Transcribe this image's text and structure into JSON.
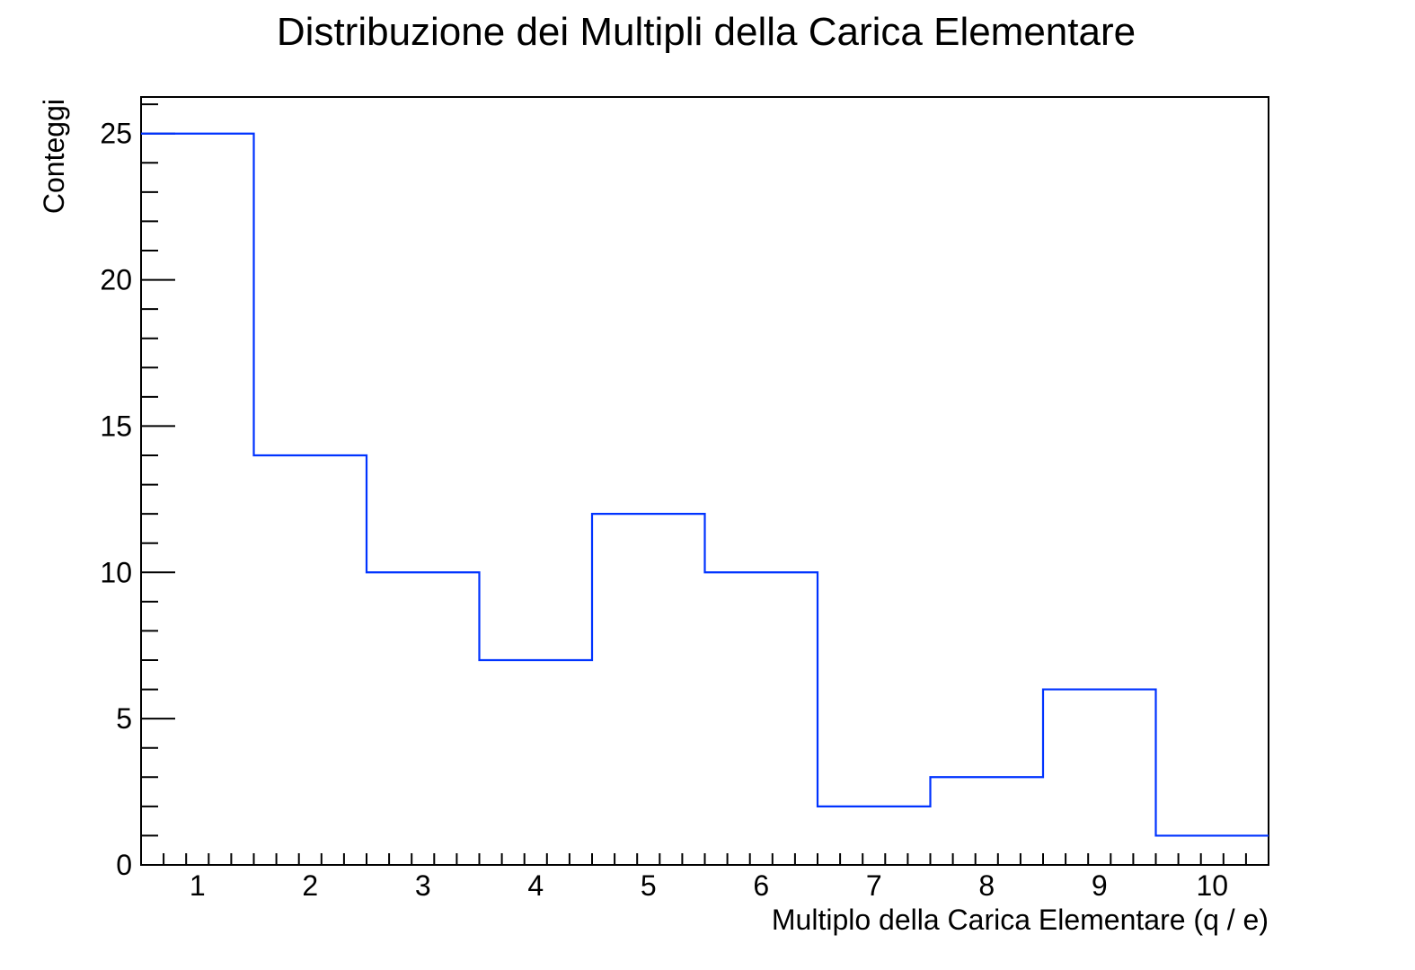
{
  "chart_data": {
    "type": "histogram",
    "title": "Distribuzione dei Multipli della Carica Elementare",
    "xlabel": "Multiplo della Carica Elementare (q / e)",
    "ylabel": "Conteggi",
    "bin_edges": [
      0.5,
      1.5,
      2.5,
      3.5,
      4.5,
      5.5,
      6.5,
      7.5,
      8.5,
      9.5,
      10.5
    ],
    "categories": [
      "1",
      "2",
      "3",
      "4",
      "5",
      "6",
      "7",
      "8",
      "9",
      "10"
    ],
    "values": [
      25,
      14,
      10,
      7,
      12,
      10,
      2,
      3,
      6,
      1
    ],
    "xlim": [
      0.5,
      10.5
    ],
    "ylim": [
      0,
      26.25
    ],
    "x_ticks": [
      1,
      2,
      3,
      4,
      5,
      6,
      7,
      8,
      9,
      10
    ],
    "x_tick_labels": [
      "1",
      "2",
      "3",
      "4",
      "5",
      "6",
      "7",
      "8",
      "9",
      "10"
    ],
    "y_ticks": [
      0,
      5,
      10,
      15,
      20,
      25
    ],
    "y_tick_labels": [
      "0",
      "5",
      "10",
      "15",
      "20",
      "25"
    ],
    "grid": false,
    "legend": "none",
    "line_color": "#0033ff",
    "axis_color": "#000000"
  }
}
